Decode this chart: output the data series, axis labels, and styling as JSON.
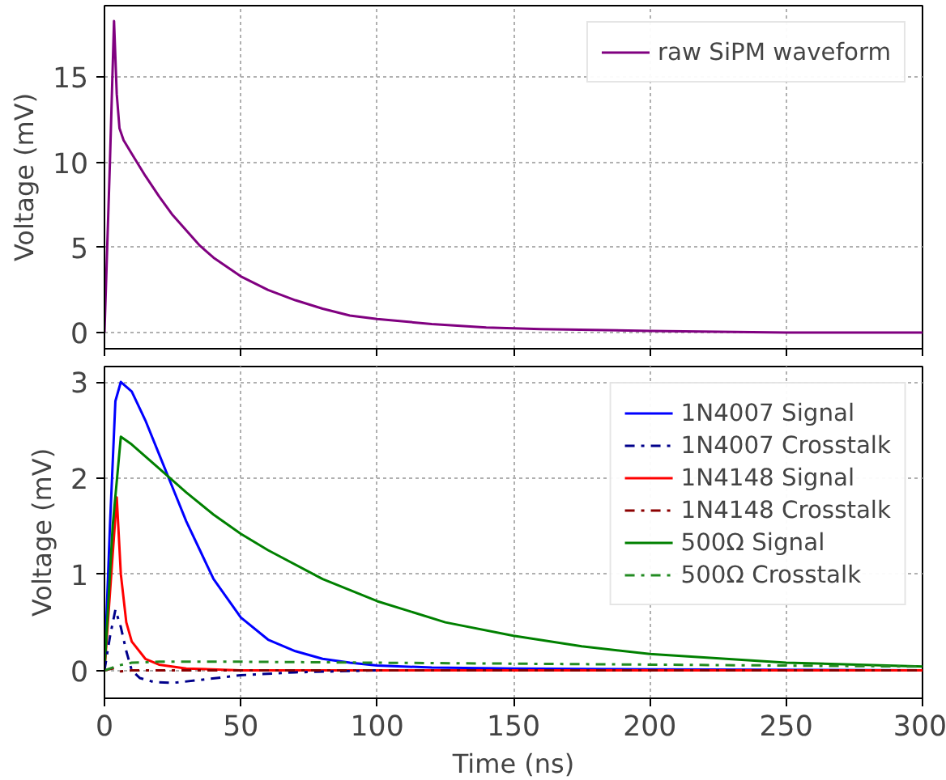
{
  "chart_data": [
    {
      "type": "line",
      "ylabel": "Voltage (mV)",
      "xlim": [
        0,
        300
      ],
      "ylim": [
        -0.95,
        19.2
      ],
      "xticks": [
        0,
        50,
        100,
        150,
        200,
        250,
        300
      ],
      "yticks": [
        0,
        5,
        10,
        15
      ],
      "tick_labels": "y",
      "grid": true,
      "legend": "top right",
      "line_style": "solid",
      "series": [
        {
          "name": "raw SiPM waveform",
          "color": "#800080",
          "x": [
            0,
            1,
            2,
            3.5,
            4.5,
            5.5,
            7,
            10,
            15,
            20,
            25,
            30,
            35,
            40,
            50,
            60,
            70,
            80,
            90,
            100,
            120,
            140,
            160,
            200,
            250,
            300
          ],
          "values": [
            0,
            5,
            10,
            18.3,
            14,
            12,
            11.3,
            10.5,
            9.2,
            8,
            6.9,
            6,
            5.1,
            4.4,
            3.3,
            2.5,
            1.9,
            1.4,
            1.0,
            0.8,
            0.5,
            0.3,
            0.2,
            0.1,
            0,
            0
          ]
        }
      ]
    },
    {
      "type": "line",
      "xlabel": "Time (ns)",
      "ylabel": "Voltage (mV)",
      "xlim": [
        0,
        300
      ],
      "ylim": [
        -0.29,
        3.16
      ],
      "xticks": [
        0,
        50,
        100,
        150,
        200,
        250,
        300
      ],
      "yticks": [
        0,
        1,
        2,
        3
      ],
      "grid": true,
      "legend": "top right",
      "series": [
        {
          "name": "1N4007 Signal",
          "color": "#0000ff",
          "line_style": "solid",
          "x": [
            0,
            2,
            4,
            6,
            10,
            15,
            20,
            25,
            30,
            35,
            40,
            50,
            60,
            70,
            80,
            90,
            100,
            120,
            150,
            200,
            300
          ],
          "values": [
            0,
            1.5,
            2.8,
            3.0,
            2.9,
            2.6,
            2.25,
            1.9,
            1.55,
            1.25,
            0.95,
            0.55,
            0.32,
            0.2,
            0.12,
            0.08,
            0.05,
            0.03,
            0.02,
            0.01,
            0
          ]
        },
        {
          "name": "1N4007 Crosstalk",
          "color": "#00008b",
          "line_style": "dashdot",
          "x": [
            0,
            2,
            4,
            6,
            8,
            10,
            13,
            18,
            25,
            35,
            50,
            70,
            100
          ],
          "values": [
            0,
            0.35,
            0.63,
            0.45,
            0.2,
            0,
            -0.08,
            -0.12,
            -0.13,
            -0.1,
            -0.05,
            -0.02,
            0
          ]
        },
        {
          "name": "1N4148 Signal",
          "color": "#ff0000",
          "line_style": "solid",
          "x": [
            0,
            2,
            4.5,
            6,
            8,
            10,
            15,
            20,
            30,
            50,
            300
          ],
          "values": [
            0,
            0.8,
            1.8,
            1.0,
            0.5,
            0.3,
            0.12,
            0.06,
            0.02,
            0,
            0
          ]
        },
        {
          "name": "1N4148 Crosstalk",
          "color": "#8b0000",
          "line_style": "dashdot",
          "x": [
            0,
            3,
            6,
            10,
            300
          ],
          "values": [
            0,
            0.02,
            -0.01,
            0,
            0
          ]
        },
        {
          "name": "500Ω Signal",
          "color": "#008000",
          "line_style": "solid",
          "x": [
            0,
            3,
            6,
            10,
            20,
            30,
            40,
            50,
            60,
            80,
            100,
            125,
            150,
            175,
            200,
            250,
            300
          ],
          "values": [
            0,
            1.5,
            2.43,
            2.35,
            2.1,
            1.85,
            1.62,
            1.42,
            1.25,
            0.95,
            0.72,
            0.5,
            0.36,
            0.25,
            0.17,
            0.08,
            0.04
          ]
        },
        {
          "name": "500Ω Crosstalk",
          "color": "#228b22",
          "line_style": "dashdot",
          "x": [
            0,
            5,
            10,
            20,
            50,
            100,
            150,
            200,
            250,
            300
          ],
          "values": [
            0,
            0.05,
            0.08,
            0.09,
            0.09,
            0.08,
            0.07,
            0.06,
            0.05,
            0.04
          ]
        }
      ]
    }
  ]
}
